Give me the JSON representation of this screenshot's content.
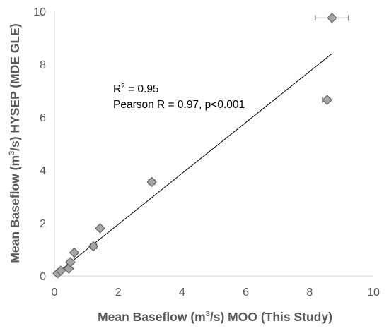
{
  "chart_data": {
    "type": "scatter",
    "x_label": {
      "pre": "Mean Baseflow (m",
      "sup": "3",
      "post": "/s) MOO (This Study)"
    },
    "y_label": {
      "pre": "Mean Baseflow (m",
      "sup": "3",
      "post": "/s) HYSEP (MDE GLE)"
    },
    "xlim": [
      0,
      10
    ],
    "ylim": [
      0,
      10
    ],
    "x_ticks": [
      "0",
      "2",
      "4",
      "6",
      "8",
      "10"
    ],
    "y_ticks": [
      "0",
      "2",
      "4",
      "6",
      "8",
      "10"
    ],
    "grid": false,
    "legend": "none",
    "marker": "diamond",
    "points": [
      {
        "x": 0.1,
        "y": 0.1,
        "xerr": 0.0
      },
      {
        "x": 0.2,
        "y": 0.2,
        "xerr": 0.0
      },
      {
        "x": 0.45,
        "y": 0.28,
        "xerr": 0.05
      },
      {
        "x": 0.5,
        "y": 0.52,
        "xerr": 0.1
      },
      {
        "x": 0.62,
        "y": 0.88,
        "xerr": 0.0
      },
      {
        "x": 1.22,
        "y": 1.12,
        "xerr": 0.1
      },
      {
        "x": 1.43,
        "y": 1.8,
        "xerr": 0.08
      },
      {
        "x": 3.05,
        "y": 3.55,
        "xerr": 0.1
      },
      {
        "x": 8.55,
        "y": 6.65,
        "xerr": 0.15
      },
      {
        "x": 8.7,
        "y": 9.75,
        "xerr": 0.52
      }
    ],
    "fit_line": {
      "x1": 0.1,
      "y1": 0.12,
      "x2": 8.7,
      "y2": 8.4
    },
    "annotations": {
      "r2_prefix": "R",
      "r2_sup": "2",
      "r2_value": " = 0.95",
      "pearson": "Pearson R = 0.97, p<0.001"
    },
    "colors": {
      "marker_fill": "#a6a6a6",
      "marker_edge": "#5a5a5a",
      "axis": "#d9d9d9",
      "text": "#595959",
      "line": "#000000"
    }
  }
}
